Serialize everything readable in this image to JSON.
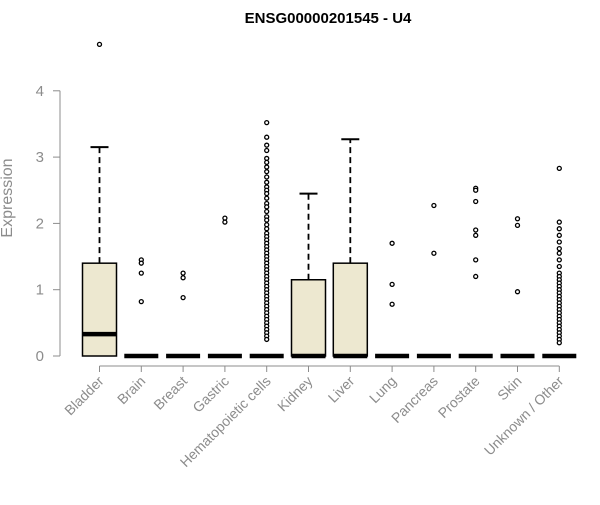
{
  "chart_data": {
    "type": "box",
    "title": "ENSG00000201545 - U4",
    "xlabel": "",
    "ylabel": "Expression",
    "ylim": [
      0,
      4.5
    ],
    "yticks": [
      0,
      1,
      2,
      3,
      4
    ],
    "grid": false,
    "colors": {
      "box_fill": "#ede8d0",
      "stroke": "#000000",
      "axis": "#8c8c8c"
    },
    "categories": [
      "Bladder",
      "Brain",
      "Breast",
      "Gastric",
      "Hematopoietic cells",
      "Kidney",
      "Liver",
      "Lung",
      "Pancreas",
      "Prostate",
      "Skin",
      "Unknown / Other"
    ],
    "boxes": [
      {
        "category": "Bladder",
        "min": 0,
        "q1": 0,
        "median": 0.33,
        "q3": 1.4,
        "max": 3.15,
        "outliers": [
          4.7
        ]
      },
      {
        "category": "Brain",
        "min": 0,
        "q1": 0,
        "median": 0,
        "q3": 0,
        "max": 0,
        "outliers": [
          1.45,
          1.4,
          1.25,
          0.82
        ]
      },
      {
        "category": "Breast",
        "min": 0,
        "q1": 0,
        "median": 0,
        "q3": 0,
        "max": 0,
        "outliers": [
          1.25,
          1.18,
          0.88
        ]
      },
      {
        "category": "Gastric",
        "min": 0,
        "q1": 0,
        "median": 0,
        "q3": 0,
        "max": 0,
        "outliers": [
          2.08,
          2.02
        ]
      },
      {
        "category": "Hematopoietic cells",
        "min": 0,
        "q1": 0,
        "median": 0,
        "q3": 0,
        "max": 0,
        "outliers": [
          3.52,
          3.3,
          3.18,
          3.1,
          2.98,
          2.92,
          2.85,
          2.78,
          2.7,
          2.62,
          2.55,
          2.5,
          2.45,
          2.38,
          2.3,
          2.25,
          2.18,
          2.1,
          2.05,
          1.98,
          1.92,
          1.85,
          1.8,
          1.75,
          1.7,
          1.65,
          1.6,
          1.55,
          1.5,
          1.45,
          1.4,
          1.35,
          1.3,
          1.25,
          1.2,
          1.15,
          1.1,
          1.05,
          1.0,
          0.95,
          0.9,
          0.85,
          0.8,
          0.75,
          0.7,
          0.65,
          0.6,
          0.55,
          0.5,
          0.45,
          0.4,
          0.35,
          0.3,
          0.25
        ]
      },
      {
        "category": "Kidney",
        "min": 0,
        "q1": 0,
        "median": 0,
        "q3": 1.15,
        "max": 2.45,
        "outliers": []
      },
      {
        "category": "Liver",
        "min": 0,
        "q1": 0,
        "median": 0,
        "q3": 1.4,
        "max": 3.27,
        "outliers": []
      },
      {
        "category": "Lung",
        "min": 0,
        "q1": 0,
        "median": 0,
        "q3": 0,
        "max": 0,
        "outliers": [
          1.7,
          1.08,
          0.78
        ]
      },
      {
        "category": "Pancreas",
        "min": 0,
        "q1": 0,
        "median": 0,
        "q3": 0,
        "max": 0,
        "outliers": [
          2.27,
          1.55
        ]
      },
      {
        "category": "Prostate",
        "min": 0,
        "q1": 0,
        "median": 0,
        "q3": 0,
        "max": 0,
        "outliers": [
          2.53,
          2.5,
          2.33,
          1.9,
          1.82,
          1.45,
          1.2
        ]
      },
      {
        "category": "Skin",
        "min": 0,
        "q1": 0,
        "median": 0,
        "q3": 0,
        "max": 0,
        "outliers": [
          2.07,
          1.97,
          0.97
        ]
      },
      {
        "category": "Unknown / Other",
        "min": 0,
        "q1": 0,
        "median": 0,
        "q3": 0,
        "max": 0,
        "outliers": [
          2.83,
          2.02,
          1.92,
          1.82,
          1.72,
          1.62,
          1.55,
          1.45,
          1.35,
          1.25,
          1.2,
          1.15,
          1.1,
          1.05,
          1.0,
          0.95,
          0.9,
          0.85,
          0.8,
          0.75,
          0.7,
          0.65,
          0.6,
          0.55,
          0.5,
          0.45,
          0.4,
          0.35,
          0.3,
          0.25,
          0.2
        ]
      }
    ]
  }
}
